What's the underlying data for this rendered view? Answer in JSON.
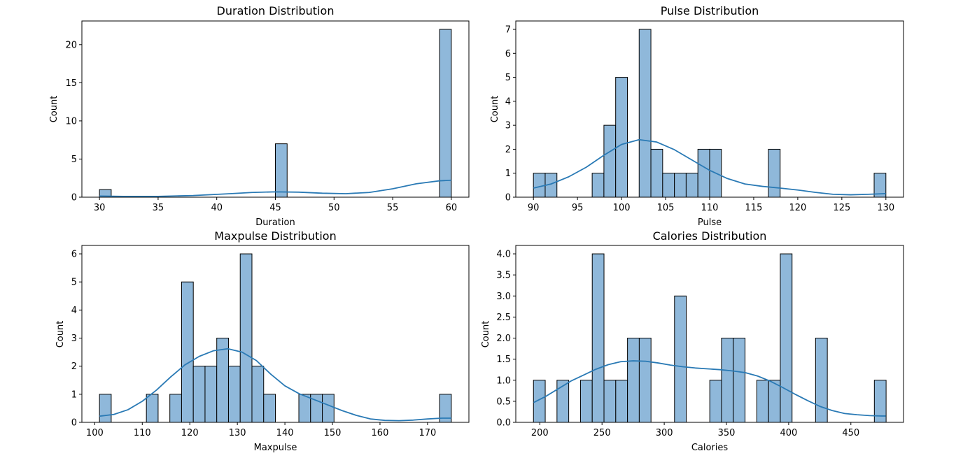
{
  "chart_data": [
    {
      "type": "bar",
      "title": "Duration Distribution",
      "xlabel": "Duration",
      "ylabel": "Count",
      "xlim": [
        28.5,
        61.5
      ],
      "ylim": [
        0,
        23.1
      ],
      "xticks": [
        30,
        35,
        40,
        45,
        50,
        55,
        60
      ],
      "yticks": [
        0,
        5,
        10,
        15,
        20
      ],
      "bin_start": 30,
      "bin_width": 1,
      "values": [
        1,
        0,
        0,
        0,
        0,
        0,
        0,
        0,
        0,
        0,
        0,
        0,
        0,
        0,
        0,
        7,
        0,
        0,
        0,
        0,
        0,
        0,
        0,
        0,
        0,
        0,
        0,
        0,
        0,
        22
      ],
      "kde": [
        [
          30,
          0.15
        ],
        [
          32,
          0.1
        ],
        [
          35,
          0.1
        ],
        [
          38,
          0.22
        ],
        [
          41,
          0.45
        ],
        [
          43,
          0.62
        ],
        [
          45,
          0.7
        ],
        [
          47,
          0.66
        ],
        [
          49,
          0.52
        ],
        [
          51,
          0.46
        ],
        [
          53,
          0.62
        ],
        [
          55,
          1.1
        ],
        [
          57,
          1.75
        ],
        [
          59,
          2.15
        ],
        [
          60,
          2.22
        ]
      ],
      "kde_line": true,
      "grid": false
    },
    {
      "type": "bar",
      "title": "Pulse Distribution",
      "xlabel": "Pulse",
      "ylabel": "Count",
      "xlim": [
        88,
        132
      ],
      "ylim": [
        0,
        7.35
      ],
      "xticks": [
        90,
        95,
        100,
        105,
        110,
        115,
        120,
        125,
        130
      ],
      "yticks": [
        0,
        1,
        2,
        3,
        4,
        5,
        6,
        7
      ],
      "bin_start": 90,
      "bin_width": 1.3333,
      "values": [
        1,
        1,
        0,
        0,
        0,
        1,
        3,
        5,
        0,
        7,
        2,
        1,
        1,
        1,
        2,
        2,
        0,
        0,
        0,
        0,
        2,
        0,
        0,
        0,
        0,
        0,
        0,
        0,
        0,
        1
      ],
      "kde": [
        [
          90,
          0.38
        ],
        [
          92,
          0.55
        ],
        [
          94,
          0.85
        ],
        [
          96,
          1.25
        ],
        [
          98,
          1.75
        ],
        [
          100,
          2.2
        ],
        [
          102,
          2.4
        ],
        [
          104,
          2.3
        ],
        [
          106,
          1.98
        ],
        [
          108,
          1.55
        ],
        [
          110,
          1.12
        ],
        [
          112,
          0.78
        ],
        [
          114,
          0.55
        ],
        [
          116,
          0.45
        ],
        [
          118,
          0.38
        ],
        [
          120,
          0.3
        ],
        [
          122,
          0.2
        ],
        [
          124,
          0.12
        ],
        [
          126,
          0.1
        ],
        [
          128,
          0.12
        ],
        [
          130,
          0.15
        ]
      ],
      "kde_line": true,
      "grid": false
    },
    {
      "type": "bar",
      "title": "Maxpulse Distribution",
      "xlabel": "Maxpulse",
      "ylabel": "Count",
      "xlim": [
        97.3,
        178.7
      ],
      "ylim": [
        0,
        6.3
      ],
      "xticks": [
        100,
        110,
        120,
        130,
        140,
        150,
        160,
        170
      ],
      "yticks": [
        0,
        1,
        2,
        3,
        4,
        5,
        6
      ],
      "bin_start": 101,
      "bin_width": 2.4667,
      "values": [
        1,
        0,
        0,
        0,
        1,
        0,
        1,
        5,
        2,
        2,
        3,
        2,
        6,
        2,
        1,
        0,
        0,
        1,
        1,
        1,
        0,
        0,
        0,
        0,
        0,
        0,
        0,
        0,
        0,
        1
      ],
      "kde": [
        [
          101,
          0.22
        ],
        [
          104,
          0.28
        ],
        [
          107,
          0.45
        ],
        [
          110,
          0.75
        ],
        [
          113,
          1.15
        ],
        [
          116,
          1.62
        ],
        [
          119,
          2.05
        ],
        [
          122,
          2.35
        ],
        [
          125,
          2.55
        ],
        [
          128,
          2.62
        ],
        [
          131,
          2.5
        ],
        [
          134,
          2.2
        ],
        [
          137,
          1.72
        ],
        [
          140,
          1.3
        ],
        [
          143,
          1.02
        ],
        [
          146,
          0.82
        ],
        [
          149,
          0.62
        ],
        [
          152,
          0.42
        ],
        [
          155,
          0.25
        ],
        [
          158,
          0.12
        ],
        [
          161,
          0.07
        ],
        [
          164,
          0.06
        ],
        [
          167,
          0.08
        ],
        [
          170,
          0.12
        ],
        [
          173,
          0.15
        ],
        [
          175,
          0.15
        ]
      ],
      "kde_line": true,
      "grid": false
    },
    {
      "type": "bar",
      "title": "Calories Distribution",
      "xlabel": "Calories",
      "ylabel": "Count",
      "xlim": [
        180.7,
        492.3
      ],
      "ylim": [
        0,
        4.2
      ],
      "xticks": [
        200,
        250,
        300,
        350,
        400,
        450
      ],
      "yticks": [
        "0.0",
        "0.5",
        "1.0",
        "1.5",
        "2.0",
        "2.5",
        "3.0",
        "3.5",
        "4.0"
      ],
      "bin_start": 194.9,
      "bin_width": 9.4467,
      "values": [
        1,
        0,
        1,
        0,
        1,
        4,
        1,
        1,
        2,
        2,
        0,
        0,
        3,
        0,
        0,
        1,
        2,
        2,
        0,
        1,
        1,
        4,
        0,
        0,
        2,
        0,
        0,
        0,
        0,
        1
      ],
      "kde": [
        [
          195,
          0.47
        ],
        [
          205,
          0.62
        ],
        [
          215,
          0.8
        ],
        [
          225,
          0.98
        ],
        [
          235,
          1.12
        ],
        [
          245,
          1.26
        ],
        [
          255,
          1.37
        ],
        [
          265,
          1.44
        ],
        [
          275,
          1.46
        ],
        [
          285,
          1.45
        ],
        [
          295,
          1.41
        ],
        [
          305,
          1.36
        ],
        [
          315,
          1.32
        ],
        [
          325,
          1.29
        ],
        [
          335,
          1.27
        ],
        [
          345,
          1.25
        ],
        [
          355,
          1.22
        ],
        [
          365,
          1.18
        ],
        [
          375,
          1.1
        ],
        [
          385,
          0.98
        ],
        [
          395,
          0.83
        ],
        [
          405,
          0.67
        ],
        [
          415,
          0.52
        ],
        [
          425,
          0.38
        ],
        [
          435,
          0.28
        ],
        [
          445,
          0.21
        ],
        [
          455,
          0.18
        ],
        [
          465,
          0.16
        ],
        [
          475,
          0.15
        ],
        [
          478,
          0.15
        ]
      ],
      "kde_line": true,
      "grid": false
    }
  ],
  "colors": {
    "bar_fill": "#8fb8da",
    "bar_edge": "#000000",
    "kde_line": "#2a7ab5",
    "axis": "#000000"
  }
}
